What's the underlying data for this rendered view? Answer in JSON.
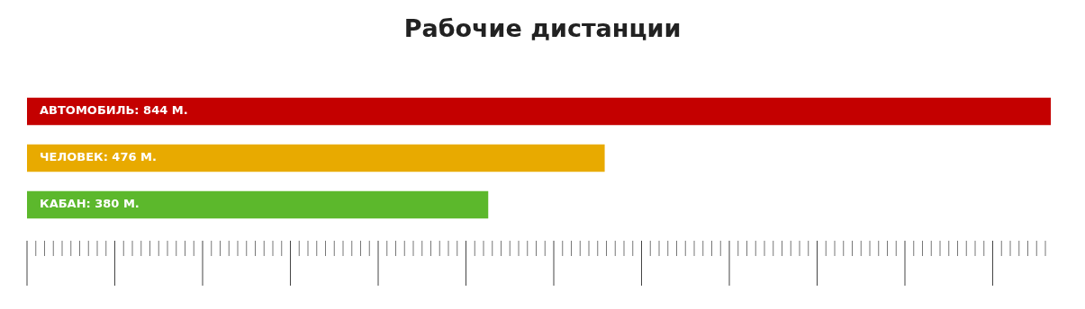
{
  "chart_data": {
    "type": "bar",
    "orientation": "horizontal",
    "title": "Рабочие дистанции",
    "categories": [
      null,
      null,
      null
    ],
    "values": [
      844,
      476,
      380
    ],
    "colors": [
      "#c40000",
      "#e8aa00",
      "#5cb82c"
    ],
    "value_labels": [
      "АВТОМОБИЛЬ: 844 М.",
      "ЧЕЛОВЕК: 476 М.",
      "КАБАН: 380 М."
    ],
    "legend": false,
    "tick_labels": false
  }
}
